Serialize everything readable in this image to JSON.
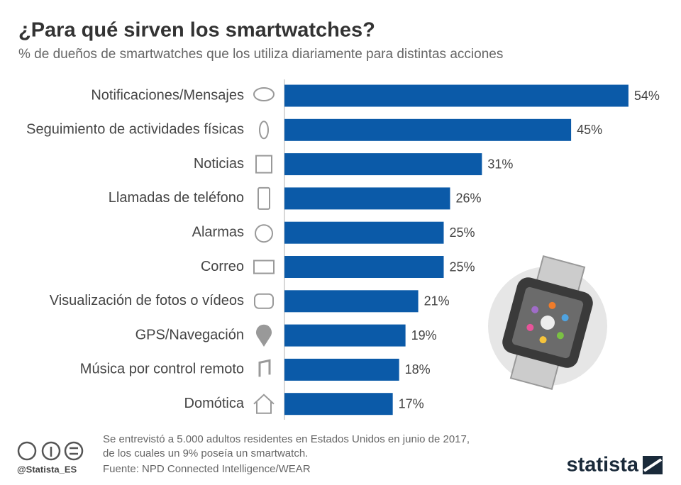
{
  "chart_data": {
    "type": "bar",
    "title": "¿Para qué sirven los smartwatches?",
    "subtitle": "% de dueños de smartwatches que los utiliza diariamente para distintas acciones",
    "categories": [
      "Notificaciones/Mensajes",
      "Seguimiento de actividades físicas",
      "Noticias",
      "Llamadas de teléfono",
      "Alarmas",
      "Correo",
      "Visualización de fotos o vídeos",
      "GPS/Navegación",
      "Música por control remoto",
      "Domótica"
    ],
    "values": [
      54,
      45,
      31,
      26,
      25,
      25,
      21,
      19,
      18,
      17
    ],
    "value_labels": [
      "54%",
      "45%",
      "31%",
      "26%",
      "25%",
      "25%",
      "21%",
      "19%",
      "18%",
      "17%"
    ],
    "color": "#0b5aa8",
    "note": [
      "Se entrevistó a 5.000 adultos residentes en Estados Unidos en junio de 2017,",
      "de los cuales un 9% poseía un smartwatch."
    ],
    "source": "Fuente: NPD Connected Intelligence/WEAR",
    "credit": "@Statista_ES",
    "brand": "statista"
  }
}
